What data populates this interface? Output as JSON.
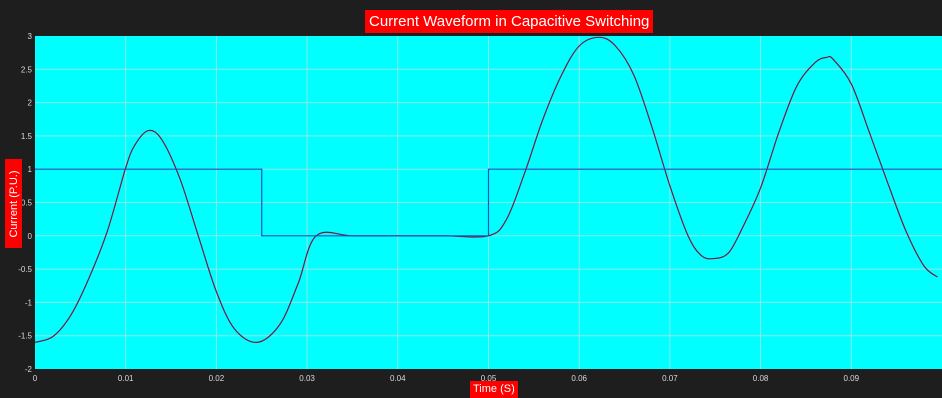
{
  "chart_data": {
    "type": "line",
    "title": "Current Waveform in Capacitive Switching",
    "xlabel": "Time (S)",
    "ylabel": "Current (P.U.)",
    "xlim": [
      0,
      0.1
    ],
    "ylim": [
      -2,
      3
    ],
    "x_ticks": [
      "0",
      "0.01",
      "0.02",
      "0.03",
      "0.04",
      "0.05",
      "0.06",
      "0.07",
      "0.08",
      "0.09"
    ],
    "y_ticks": [
      "-2",
      "-1.5",
      "-1",
      "-0.5",
      "0",
      "0.5",
      "1",
      "1.5",
      "2",
      "2.5",
      "3"
    ],
    "grid": true,
    "colors": {
      "plot_background": "#00ffff",
      "figure_background": "#1e1e1e",
      "current_line": "#7a1540",
      "switch_line": "#1a4fc0",
      "label_background": "#ff0000"
    },
    "series": [
      {
        "points": [
          [
            0,
            -1.6
          ],
          [
            0.002,
            -1.51
          ],
          [
            0.004,
            -1.18
          ],
          [
            0.006,
            -0.62
          ],
          [
            0.008,
            0.08
          ],
          [
            0.01,
            1.02
          ],
          [
            0.011,
            1.36
          ],
          [
            0.0125,
            1.58
          ],
          [
            0.014,
            1.44
          ],
          [
            0.016,
            0.85
          ],
          [
            0.018,
            0.0
          ],
          [
            0.02,
            -0.84
          ],
          [
            0.022,
            -1.4
          ],
          [
            0.0245,
            -1.6
          ],
          [
            0.027,
            -1.33
          ],
          [
            0.029,
            -0.72
          ],
          [
            0.031,
            0.0
          ],
          [
            0.035,
            0.0
          ],
          [
            0.04,
            0.0
          ],
          [
            0.045,
            0.0
          ],
          [
            0.05,
            0.0
          ],
          [
            0.052,
            0.25
          ],
          [
            0.054,
            0.95
          ],
          [
            0.056,
            1.75
          ],
          [
            0.058,
            2.4
          ],
          [
            0.06,
            2.85
          ],
          [
            0.0622,
            2.98
          ],
          [
            0.064,
            2.85
          ],
          [
            0.066,
            2.42
          ],
          [
            0.068,
            1.64
          ],
          [
            0.07,
            0.75
          ],
          [
            0.072,
            0.0
          ],
          [
            0.0735,
            -0.3
          ],
          [
            0.075,
            -0.34
          ],
          [
            0.0765,
            -0.25
          ],
          [
            0.078,
            0.12
          ],
          [
            0.08,
            0.72
          ],
          [
            0.082,
            1.55
          ],
          [
            0.084,
            2.25
          ],
          [
            0.086,
            2.6
          ],
          [
            0.0873,
            2.68
          ],
          [
            0.088,
            2.65
          ],
          [
            0.09,
            2.28
          ],
          [
            0.092,
            1.55
          ],
          [
            0.094,
            0.8
          ],
          [
            0.096,
            0.08
          ],
          [
            0.098,
            -0.45
          ],
          [
            0.0995,
            -0.62
          ]
        ]
      },
      {
        "points": [
          [
            0,
            1.0
          ],
          [
            0.025,
            1.0
          ],
          [
            0.025,
            0.0
          ],
          [
            0.05,
            0.0
          ],
          [
            0.05,
            1.0
          ],
          [
            0.1,
            1.0
          ]
        ]
      }
    ]
  }
}
